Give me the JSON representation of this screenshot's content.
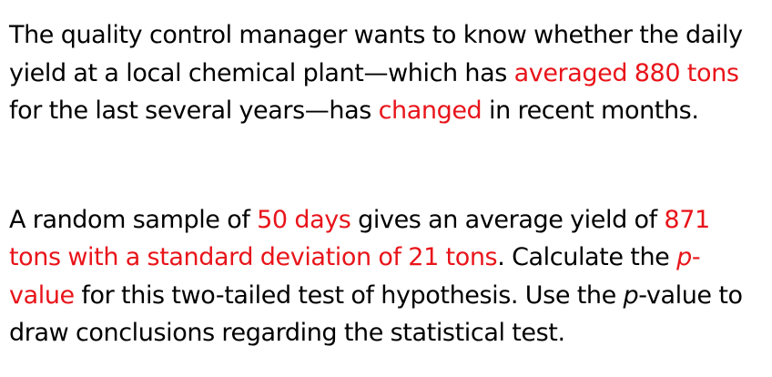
{
  "colors": {
    "text": "#000000",
    "highlight": "#e8141a",
    "background": "#ffffff"
  },
  "paragraph1": {
    "t1": "The quality control manager wants to know whether the daily yield at a local chemical plant—which has ",
    "h1": "averaged 880 tons",
    "t2": " for the last several years—has ",
    "h2": "changed",
    "t3": " in recent months."
  },
  "paragraph2": {
    "t1": "A random sample of ",
    "h1": "50 days",
    "t2": " gives an average yield of ",
    "h2": "871 tons with a standard deviation of 21 tons",
    "t3": ". Calculate the ",
    "h3_italic": "p",
    "h3_rest": "-value",
    "t4": " for this two-tailed test of hypothesis. Use the ",
    "t5_italic": "p",
    "t6": "-value to draw conclusions regarding the statistical test."
  }
}
